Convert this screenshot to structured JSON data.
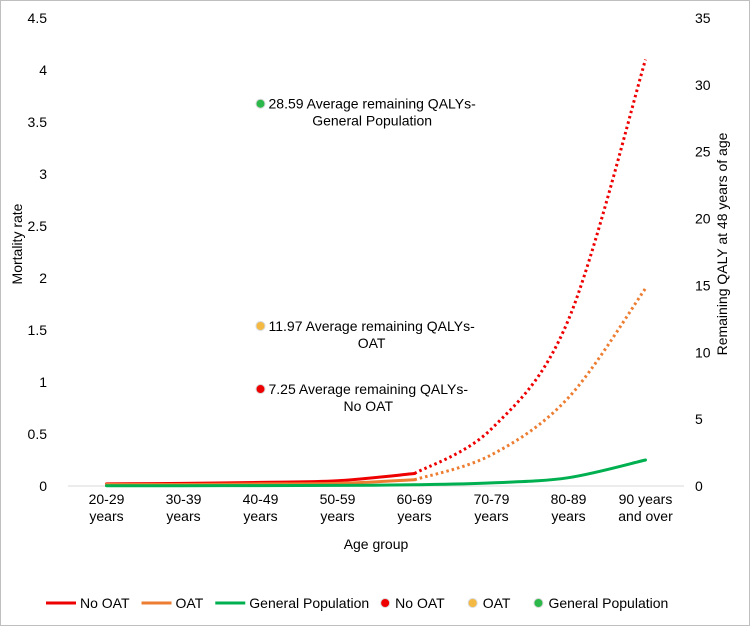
{
  "chart_data": {
    "type": "line",
    "xlabel": "Age group",
    "ylabel": "Mortality rate",
    "y2label": "Remaining QALY at 48 years of age",
    "ylim": [
      0,
      4.5
    ],
    "y2lim": [
      0,
      35
    ],
    "y_ticks": [
      "0",
      "0.5",
      "1",
      "1.5",
      "2",
      "2.5",
      "3",
      "3.5",
      "4",
      "4.5"
    ],
    "y2_ticks": [
      "0",
      "5",
      "10",
      "15",
      "20",
      "25",
      "30",
      "35"
    ],
    "categories": [
      [
        "20-29",
        "years"
      ],
      [
        "30-39",
        "years"
      ],
      [
        "40-49",
        "years"
      ],
      [
        "50-59",
        "years"
      ],
      [
        "60-69",
        "years"
      ],
      [
        "70-79",
        "years"
      ],
      [
        "80-89",
        "years"
      ],
      [
        "90 years",
        "and over"
      ]
    ],
    "series": [
      {
        "name": "No OAT",
        "color": "#ee0000",
        "values": [
          0.02,
          0.025,
          0.035,
          0.05,
          0.12,
          0.55,
          1.6,
          4.1
        ],
        "solid_until": 4
      },
      {
        "name": "OAT",
        "color": "#ed7d31",
        "values": [
          0.015,
          0.015,
          0.02,
          0.025,
          0.06,
          0.3,
          0.85,
          1.9
        ],
        "solid_until": 4
      },
      {
        "name": "General Population",
        "color": "#00b050",
        "values": [
          0.002,
          0.003,
          0.004,
          0.006,
          0.012,
          0.03,
          0.08,
          0.25
        ],
        "solid_until": 7
      }
    ],
    "points": [
      {
        "name": "No OAT",
        "color": "#ee0000",
        "x_index": 2,
        "y2": 7.25,
        "label_line1": "7.25  Average remaining QALYs-",
        "label_line2": "No OAT"
      },
      {
        "name": "OAT",
        "color": "#f4b942",
        "x_index": 2,
        "y2": 11.97,
        "label_line1": "11.97 Average remaining QALYs-",
        "label_line2": "OAT"
      },
      {
        "name": "General Population",
        "color": "#2db84b",
        "x_index": 2,
        "y2": 28.59,
        "label_line1": "28.59  Average remaining QALYs-",
        "label_line2": "General Population"
      }
    ],
    "legend": {
      "position": "bottom",
      "items": [
        {
          "label": "No OAT",
          "kind": "line",
          "color": "#ee0000"
        },
        {
          "label": "OAT",
          "kind": "line",
          "color": "#ed7d31"
        },
        {
          "label": "General Population",
          "kind": "line",
          "color": "#00b050"
        },
        {
          "label": "No OAT",
          "kind": "dot",
          "color": "#ee0000"
        },
        {
          "label": "OAT",
          "kind": "dot",
          "color": "#f4b942"
        },
        {
          "label": "General Population",
          "kind": "dot",
          "color": "#2db84b"
        }
      ]
    }
  }
}
